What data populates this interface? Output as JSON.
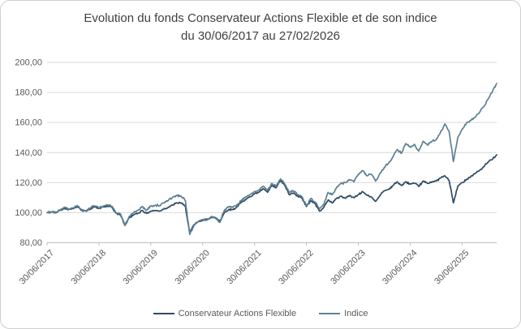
{
  "title": {
    "line1": "Evolution du fonds Conservateur Actions Flexible et de son indice",
    "line2": "du 30/06/2017 au 27/02/2026",
    "color": "#404040"
  },
  "axis": {
    "label_color": "#595959",
    "grid_color": "#d9d9d9",
    "axis_line_color": "#bfbfbf"
  },
  "chart_data": {
    "type": "line",
    "title": "Evolution du fonds Conservateur Actions Flexible et de son indice du 30/06/2017 au 27/02/2026",
    "xlabel": "",
    "ylabel": "",
    "ylim": [
      80,
      200
    ],
    "y_tick_step": 20,
    "y_tick_labels": [
      "200,00",
      "180,00",
      "160,00",
      "140,00",
      "120,00",
      "100,00",
      "80,00"
    ],
    "x_tick_labels": [
      "30/06/2017",
      "30/06/2018",
      "30/06/2019",
      "30/06/2020",
      "30/06/2021",
      "30/06/2022",
      "30/06/2023",
      "30/06/2024",
      "30/06/2025"
    ],
    "x_start": "30/06/2017",
    "x_end": "27/02/2026",
    "x_resolution": "monthly",
    "grid": "horizontal",
    "legend_position": "bottom",
    "series": [
      {
        "name": "Conservateur Actions Flexible",
        "color": "#2f4a63",
        "values": [
          100,
          100.5,
          100.2,
          101.5,
          103,
          102,
          102.8,
          104,
          101.5,
          101,
          102.5,
          103.8,
          102.8,
          103.8,
          104.2,
          103.5,
          99.5,
          98.5,
          91.5,
          96.5,
          98.5,
          99.5,
          101.5,
          99.5,
          101,
          101.5,
          101,
          102.5,
          103.5,
          105,
          106.5,
          106.5,
          104,
          86.5,
          92,
          94,
          95,
          95.5,
          97,
          96.5,
          94.5,
          100,
          102,
          102,
          104,
          107,
          109,
          110.5,
          112.5,
          113.5,
          116,
          113.5,
          118,
          116.5,
          121.5,
          118,
          112,
          113,
          111,
          109.5,
          104,
          108,
          106,
          101,
          103.5,
          108.5,
          106.5,
          109.5,
          111,
          109.5,
          111.5,
          110,
          112,
          114,
          111.5,
          110.5,
          107.5,
          111.5,
          114.5,
          115.5,
          118,
          120.5,
          118,
          120.5,
          119,
          119.5,
          117.5,
          121,
          119.5,
          120.5,
          121,
          123,
          124.5,
          121.5,
          106.5,
          117.5,
          120,
          122,
          124,
          126,
          128,
          130.5,
          133.5,
          135.5,
          138.5
        ]
      },
      {
        "name": "Indice",
        "color": "#5d8093",
        "values": [
          100,
          100.6,
          99.8,
          101.8,
          103.6,
          102.2,
          103.2,
          104.8,
          102,
          101.2,
          103.2,
          104.5,
          103.2,
          104.5,
          105,
          104.2,
          99.8,
          99,
          91.8,
          97.5,
          100,
          101.5,
          104,
          101.5,
          104.5,
          105,
          104.5,
          106.5,
          108,
          110,
          111.5,
          111,
          108,
          85.5,
          91.5,
          94,
          95.5,
          95,
          97.5,
          96,
          93.5,
          101.5,
          104,
          103.5,
          105.5,
          108.5,
          110.5,
          112,
          114,
          115,
          117.5,
          115,
          119.5,
          117.5,
          122.5,
          119,
          113.5,
          114.5,
          112,
          110.5,
          104.5,
          109.5,
          107,
          102.5,
          105.5,
          113.5,
          112,
          117,
          119.5,
          120,
          122,
          120.5,
          125.5,
          128,
          124.5,
          125.5,
          121,
          126,
          130,
          133,
          137,
          142,
          139.5,
          146,
          143.5,
          145.5,
          141,
          147.5,
          145,
          147.5,
          148.5,
          153.5,
          159,
          154,
          134,
          150,
          155.5,
          159.5,
          161.5,
          163.5,
          166.5,
          170.5,
          175.5,
          180.5,
          186
        ]
      }
    ]
  }
}
